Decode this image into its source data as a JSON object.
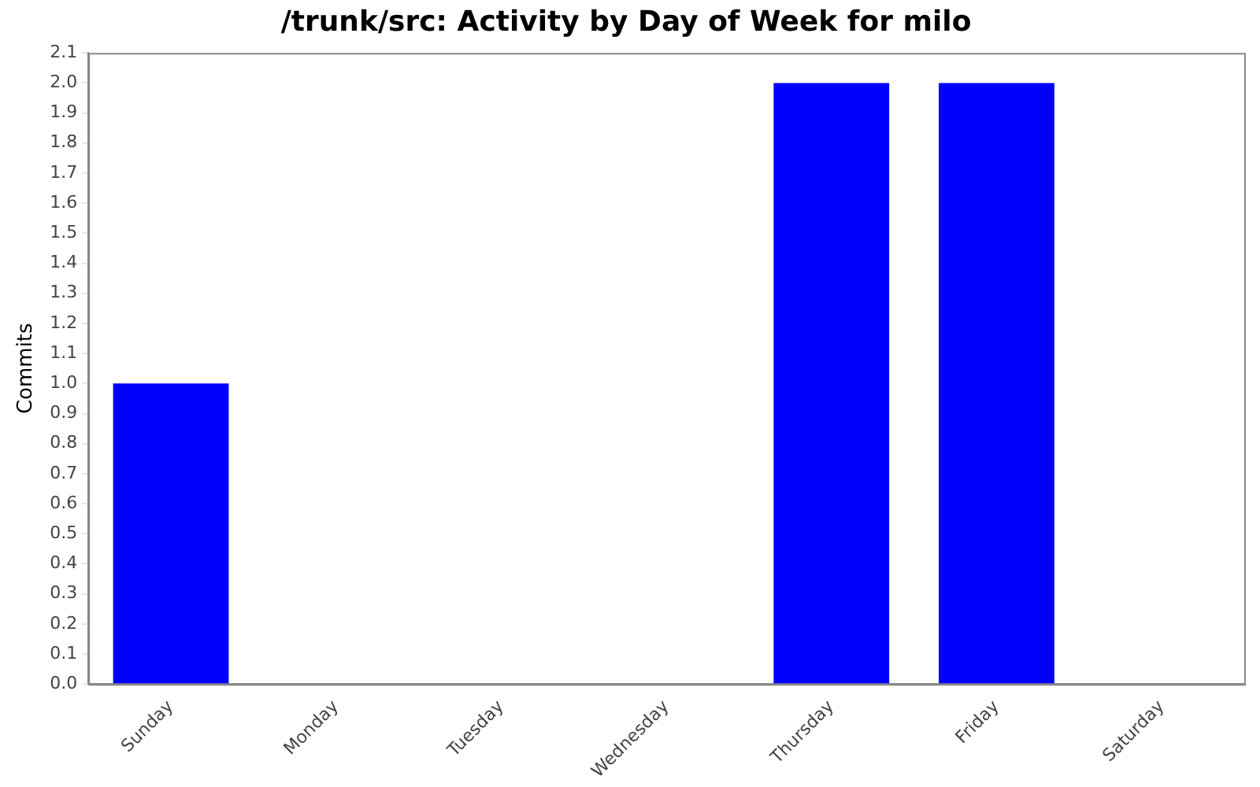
{
  "chart_data": {
    "type": "bar",
    "title": "/trunk/src: Activity by Day of Week for milo",
    "ylabel": "Commits",
    "categories": [
      "Sunday",
      "Monday",
      "Tuesday",
      "Wednesday",
      "Thursday",
      "Friday",
      "Saturday"
    ],
    "values": [
      1,
      0,
      0,
      0,
      2,
      2,
      0
    ],
    "color": "#0000ff",
    "ylim": [
      0,
      2.1
    ],
    "yticks": [
      {
        "value": 0,
        "label": "0.0"
      },
      0.1,
      0.2,
      0.3,
      0.4,
      0.5,
      0.6,
      0.7,
      0.8,
      0.9,
      {
        "value": 1,
        "label": "1.0"
      },
      1.1,
      1.2,
      1.3,
      1.4,
      1.5,
      1.6,
      1.7,
      1.8,
      1.9,
      {
        "value": 2,
        "label": "2.0"
      },
      2.1
    ],
    "grid": false,
    "legend": false
  }
}
